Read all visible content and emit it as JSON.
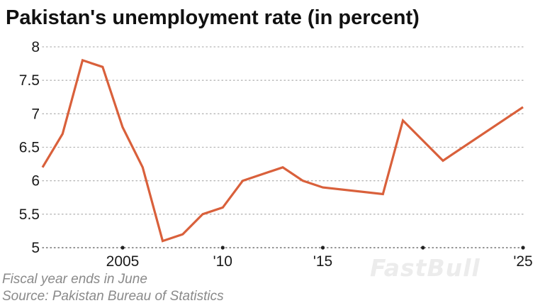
{
  "header": {
    "title": "Pakistan's unemployment rate (in percent)"
  },
  "footer": {
    "note": "Fiscal year ends in June",
    "source": "Source: Pakistan Bureau of Statistics"
  },
  "watermark": "FastBull",
  "colors": {
    "line": "#d9603b",
    "grid": "#b5b5b5",
    "axis": "#555555",
    "text": "#1a1a1a",
    "note": "#8a8a8a"
  },
  "chart_data": {
    "type": "line",
    "title": "Pakistan's unemployment rate (in percent)",
    "xlabel": "",
    "ylabel": "",
    "x": [
      2001,
      2002,
      2003,
      2004,
      2005,
      2006,
      2007,
      2008,
      2009,
      2010,
      2011,
      2013,
      2014,
      2015,
      2018,
      2019,
      2021,
      2025
    ],
    "values": [
      6.2,
      6.7,
      7.8,
      7.7,
      6.8,
      6.2,
      5.1,
      5.2,
      5.5,
      5.6,
      6.0,
      6.2,
      6.0,
      5.9,
      5.8,
      6.9,
      6.3,
      7.1
    ],
    "xlim": [
      2001,
      2025
    ],
    "ylim": [
      5,
      8
    ],
    "yticks": [
      5,
      5.5,
      6,
      6.5,
      7,
      7.5,
      8
    ],
    "ytick_labels": [
      "5",
      "5.5",
      "6",
      "6.5",
      "7",
      "7.5",
      "8"
    ],
    "xticks": [
      2005,
      2010,
      2015,
      2025
    ],
    "xtick_labels": [
      "2005",
      "'10",
      "'15",
      "'25"
    ],
    "xtick_marks": [
      2005,
      2010,
      2015,
      2020,
      2025
    ],
    "grid": "horizontal dotted",
    "legend": "none"
  }
}
